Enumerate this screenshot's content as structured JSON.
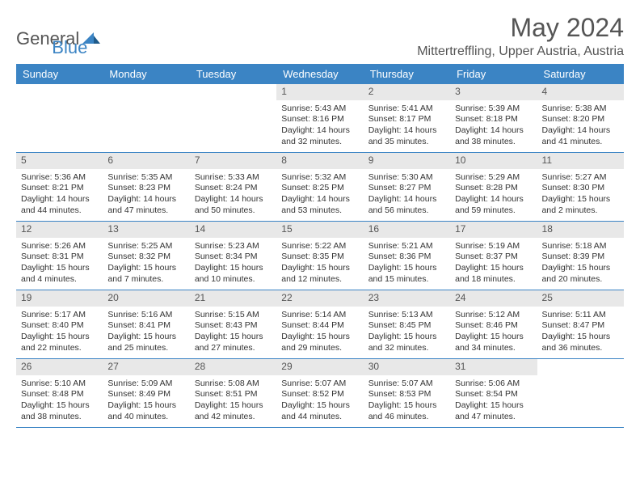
{
  "logo": {
    "part1": "General",
    "part2": "Blue"
  },
  "title": "May 2024",
  "location": "Mittertreffling, Upper Austria, Austria",
  "colors": {
    "header_bg": "#3b84c4",
    "header_text": "#ffffff",
    "day_number_bg": "#e8e8e8",
    "border": "#3b84c4",
    "text": "#333333",
    "title_text": "#555555"
  },
  "weekdays": [
    "Sunday",
    "Monday",
    "Tuesday",
    "Wednesday",
    "Thursday",
    "Friday",
    "Saturday"
  ],
  "weeks": [
    [
      null,
      null,
      null,
      {
        "n": "1",
        "sr": "Sunrise: 5:43 AM",
        "ss": "Sunset: 8:16 PM",
        "d1": "Daylight: 14 hours",
        "d2": "and 32 minutes."
      },
      {
        "n": "2",
        "sr": "Sunrise: 5:41 AM",
        "ss": "Sunset: 8:17 PM",
        "d1": "Daylight: 14 hours",
        "d2": "and 35 minutes."
      },
      {
        "n": "3",
        "sr": "Sunrise: 5:39 AM",
        "ss": "Sunset: 8:18 PM",
        "d1": "Daylight: 14 hours",
        "d2": "and 38 minutes."
      },
      {
        "n": "4",
        "sr": "Sunrise: 5:38 AM",
        "ss": "Sunset: 8:20 PM",
        "d1": "Daylight: 14 hours",
        "d2": "and 41 minutes."
      }
    ],
    [
      {
        "n": "5",
        "sr": "Sunrise: 5:36 AM",
        "ss": "Sunset: 8:21 PM",
        "d1": "Daylight: 14 hours",
        "d2": "and 44 minutes."
      },
      {
        "n": "6",
        "sr": "Sunrise: 5:35 AM",
        "ss": "Sunset: 8:23 PM",
        "d1": "Daylight: 14 hours",
        "d2": "and 47 minutes."
      },
      {
        "n": "7",
        "sr": "Sunrise: 5:33 AM",
        "ss": "Sunset: 8:24 PM",
        "d1": "Daylight: 14 hours",
        "d2": "and 50 minutes."
      },
      {
        "n": "8",
        "sr": "Sunrise: 5:32 AM",
        "ss": "Sunset: 8:25 PM",
        "d1": "Daylight: 14 hours",
        "d2": "and 53 minutes."
      },
      {
        "n": "9",
        "sr": "Sunrise: 5:30 AM",
        "ss": "Sunset: 8:27 PM",
        "d1": "Daylight: 14 hours",
        "d2": "and 56 minutes."
      },
      {
        "n": "10",
        "sr": "Sunrise: 5:29 AM",
        "ss": "Sunset: 8:28 PM",
        "d1": "Daylight: 14 hours",
        "d2": "and 59 minutes."
      },
      {
        "n": "11",
        "sr": "Sunrise: 5:27 AM",
        "ss": "Sunset: 8:30 PM",
        "d1": "Daylight: 15 hours",
        "d2": "and 2 minutes."
      }
    ],
    [
      {
        "n": "12",
        "sr": "Sunrise: 5:26 AM",
        "ss": "Sunset: 8:31 PM",
        "d1": "Daylight: 15 hours",
        "d2": "and 4 minutes."
      },
      {
        "n": "13",
        "sr": "Sunrise: 5:25 AM",
        "ss": "Sunset: 8:32 PM",
        "d1": "Daylight: 15 hours",
        "d2": "and 7 minutes."
      },
      {
        "n": "14",
        "sr": "Sunrise: 5:23 AM",
        "ss": "Sunset: 8:34 PM",
        "d1": "Daylight: 15 hours",
        "d2": "and 10 minutes."
      },
      {
        "n": "15",
        "sr": "Sunrise: 5:22 AM",
        "ss": "Sunset: 8:35 PM",
        "d1": "Daylight: 15 hours",
        "d2": "and 12 minutes."
      },
      {
        "n": "16",
        "sr": "Sunrise: 5:21 AM",
        "ss": "Sunset: 8:36 PM",
        "d1": "Daylight: 15 hours",
        "d2": "and 15 minutes."
      },
      {
        "n": "17",
        "sr": "Sunrise: 5:19 AM",
        "ss": "Sunset: 8:37 PM",
        "d1": "Daylight: 15 hours",
        "d2": "and 18 minutes."
      },
      {
        "n": "18",
        "sr": "Sunrise: 5:18 AM",
        "ss": "Sunset: 8:39 PM",
        "d1": "Daylight: 15 hours",
        "d2": "and 20 minutes."
      }
    ],
    [
      {
        "n": "19",
        "sr": "Sunrise: 5:17 AM",
        "ss": "Sunset: 8:40 PM",
        "d1": "Daylight: 15 hours",
        "d2": "and 22 minutes."
      },
      {
        "n": "20",
        "sr": "Sunrise: 5:16 AM",
        "ss": "Sunset: 8:41 PM",
        "d1": "Daylight: 15 hours",
        "d2": "and 25 minutes."
      },
      {
        "n": "21",
        "sr": "Sunrise: 5:15 AM",
        "ss": "Sunset: 8:43 PM",
        "d1": "Daylight: 15 hours",
        "d2": "and 27 minutes."
      },
      {
        "n": "22",
        "sr": "Sunrise: 5:14 AM",
        "ss": "Sunset: 8:44 PM",
        "d1": "Daylight: 15 hours",
        "d2": "and 29 minutes."
      },
      {
        "n": "23",
        "sr": "Sunrise: 5:13 AM",
        "ss": "Sunset: 8:45 PM",
        "d1": "Daylight: 15 hours",
        "d2": "and 32 minutes."
      },
      {
        "n": "24",
        "sr": "Sunrise: 5:12 AM",
        "ss": "Sunset: 8:46 PM",
        "d1": "Daylight: 15 hours",
        "d2": "and 34 minutes."
      },
      {
        "n": "25",
        "sr": "Sunrise: 5:11 AM",
        "ss": "Sunset: 8:47 PM",
        "d1": "Daylight: 15 hours",
        "d2": "and 36 minutes."
      }
    ],
    [
      {
        "n": "26",
        "sr": "Sunrise: 5:10 AM",
        "ss": "Sunset: 8:48 PM",
        "d1": "Daylight: 15 hours",
        "d2": "and 38 minutes."
      },
      {
        "n": "27",
        "sr": "Sunrise: 5:09 AM",
        "ss": "Sunset: 8:49 PM",
        "d1": "Daylight: 15 hours",
        "d2": "and 40 minutes."
      },
      {
        "n": "28",
        "sr": "Sunrise: 5:08 AM",
        "ss": "Sunset: 8:51 PM",
        "d1": "Daylight: 15 hours",
        "d2": "and 42 minutes."
      },
      {
        "n": "29",
        "sr": "Sunrise: 5:07 AM",
        "ss": "Sunset: 8:52 PM",
        "d1": "Daylight: 15 hours",
        "d2": "and 44 minutes."
      },
      {
        "n": "30",
        "sr": "Sunrise: 5:07 AM",
        "ss": "Sunset: 8:53 PM",
        "d1": "Daylight: 15 hours",
        "d2": "and 46 minutes."
      },
      {
        "n": "31",
        "sr": "Sunrise: 5:06 AM",
        "ss": "Sunset: 8:54 PM",
        "d1": "Daylight: 15 hours",
        "d2": "and 47 minutes."
      },
      null
    ]
  ]
}
